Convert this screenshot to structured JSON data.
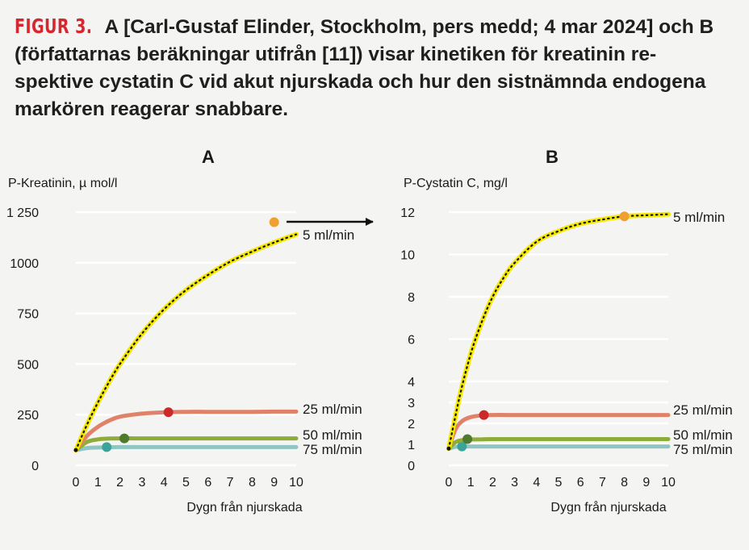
{
  "caption": {
    "label": "FIGUR 3.",
    "text": "A [Carl-Gustaf Elinder, Stockholm, pers medd; 4 mar 2024] och B (författarnas beräkningar utifrån [11]) visar kinetiken för kreatinin re-spektive cystatin C vid akut njurskada och hur den sistnämnda endogena markören reagerar snabbare."
  },
  "colors": {
    "yellow": "#f5e800",
    "red": "#e0826a",
    "green": "#8fac3a",
    "teal": "#8fc6c3",
    "marker_orange": "#f0a030",
    "marker_red": "#cc2a2a",
    "marker_green": "#4f7a2c",
    "marker_teal": "#3aa39a"
  },
  "chart_data": [
    {
      "type": "line",
      "panel": "A",
      "ylabel": "P-Kreatinin, µ mol/l",
      "xlabel": "Dygn från njurskada",
      "xlim": [
        0,
        10
      ],
      "ylim": [
        0,
        1250
      ],
      "xticks": [
        "0",
        "1",
        "2",
        "3",
        "4",
        "5",
        "6",
        "7",
        "8",
        "9",
        "10"
      ],
      "yticks": [
        {
          "value": 0,
          "label": "0"
        },
        {
          "value": 250,
          "label": "250"
        },
        {
          "value": 500,
          "label": "500"
        },
        {
          "value": 750,
          "label": "750"
        },
        {
          "value": 1000,
          "label": "1000"
        },
        {
          "value": 1250,
          "label": "1 250"
        }
      ],
      "series": [
        {
          "name": "5 ml/min",
          "color": "yellow",
          "dotted": true,
          "x": [
            0,
            0.5,
            1,
            1.5,
            2,
            3,
            4,
            5,
            6,
            7,
            8,
            9,
            10
          ],
          "y": [
            75,
            200,
            310,
            410,
            500,
            650,
            770,
            865,
            940,
            1005,
            1055,
            1100,
            1140
          ],
          "marker": {
            "x": 9,
            "y": 1200,
            "color": "marker_orange"
          }
        },
        {
          "name": "25 ml/min",
          "color": "red",
          "x": [
            0,
            0.5,
            1,
            1.5,
            2,
            3,
            4,
            5,
            6,
            7,
            8,
            9,
            10
          ],
          "y": [
            75,
            145,
            190,
            220,
            240,
            255,
            262,
            264,
            264,
            264,
            264,
            265,
            265
          ],
          "marker": {
            "x": 4.2,
            "y": 262,
            "color": "marker_red"
          }
        },
        {
          "name": "50 ml/min",
          "color": "green",
          "x": [
            0,
            0.5,
            1,
            1.5,
            2,
            3,
            4,
            5,
            6,
            7,
            8,
            9,
            10
          ],
          "y": [
            75,
            115,
            128,
            132,
            133,
            133,
            133,
            133,
            133,
            133,
            133,
            133,
            133
          ],
          "marker": {
            "x": 2.2,
            "y": 133,
            "color": "marker_green"
          }
        },
        {
          "name": "75 ml/min",
          "color": "teal",
          "x": [
            0,
            0.5,
            1,
            1.5,
            2,
            3,
            4,
            5,
            6,
            7,
            8,
            9,
            10
          ],
          "y": [
            75,
            85,
            88,
            89,
            90,
            90,
            90,
            90,
            90,
            90,
            90,
            90,
            90
          ],
          "marker": {
            "x": 1.4,
            "y": 90,
            "color": "marker_teal"
          }
        }
      ]
    },
    {
      "type": "line",
      "panel": "B",
      "ylabel": "P-Cystatin C, mg/l",
      "xlabel": "Dygn från njurskada",
      "xlim": [
        0,
        10
      ],
      "ylim": [
        0,
        12
      ],
      "xticks": [
        "0",
        "1",
        "2",
        "3",
        "4",
        "5",
        "6",
        "7",
        "8",
        "9",
        "10"
      ],
      "yticks": [
        {
          "value": 0,
          "label": "0"
        },
        {
          "value": 1,
          "label": "1"
        },
        {
          "value": 2,
          "label": "2"
        },
        {
          "value": 3,
          "label": "3"
        },
        {
          "value": 4,
          "label": "4"
        },
        {
          "value": 6,
          "label": "6"
        },
        {
          "value": 8,
          "label": "8"
        },
        {
          "value": 10,
          "label": "10"
        },
        {
          "value": 12,
          "label": "12"
        }
      ],
      "series": [
        {
          "name": "5 ml/min",
          "color": "yellow",
          "dotted": true,
          "x": [
            0,
            0.5,
            1,
            1.5,
            2,
            2.5,
            3,
            4,
            5,
            6,
            7,
            8,
            9,
            10
          ],
          "y": [
            0.8,
            3.3,
            5.3,
            6.8,
            8.0,
            8.9,
            9.6,
            10.6,
            11.1,
            11.45,
            11.65,
            11.8,
            11.85,
            11.9
          ],
          "marker": {
            "x": 8,
            "y": 11.8,
            "color": "marker_orange"
          }
        },
        {
          "name": "25 ml/min",
          "color": "red",
          "x": [
            0,
            0.3,
            0.6,
            1,
            1.5,
            2,
            3,
            4,
            5,
            6,
            7,
            8,
            9,
            10
          ],
          "y": [
            0.8,
            1.7,
            2.1,
            2.3,
            2.38,
            2.4,
            2.4,
            2.4,
            2.4,
            2.4,
            2.4,
            2.4,
            2.4,
            2.4
          ],
          "marker": {
            "x": 1.6,
            "y": 2.4,
            "color": "marker_red"
          }
        },
        {
          "name": "50 ml/min",
          "color": "green",
          "x": [
            0,
            0.3,
            0.6,
            1,
            1.5,
            2,
            3,
            4,
            5,
            6,
            7,
            8,
            9,
            10
          ],
          "y": [
            0.8,
            1.1,
            1.2,
            1.23,
            1.24,
            1.25,
            1.25,
            1.25,
            1.25,
            1.25,
            1.25,
            1.25,
            1.25,
            1.25
          ],
          "marker": {
            "x": 0.85,
            "y": 1.25,
            "color": "marker_green"
          }
        },
        {
          "name": "75 ml/min",
          "color": "teal",
          "x": [
            0,
            0.3,
            0.6,
            1,
            1.5,
            2,
            3,
            4,
            5,
            6,
            7,
            8,
            9,
            10
          ],
          "y": [
            0.8,
            0.88,
            0.9,
            0.9,
            0.9,
            0.9,
            0.9,
            0.9,
            0.9,
            0.9,
            0.9,
            0.9,
            0.9,
            0.9
          ],
          "marker": {
            "x": 0.6,
            "y": 0.9,
            "color": "marker_teal"
          }
        }
      ]
    }
  ]
}
